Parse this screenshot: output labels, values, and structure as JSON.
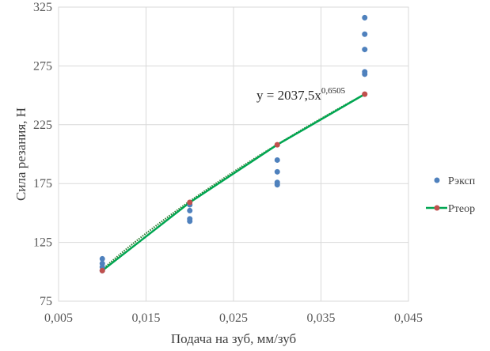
{
  "chart_data": {
    "type": "scatter",
    "title": "",
    "xlabel": "Подача на зуб, мм/зуб",
    "ylabel": "Сила резания, Н",
    "xlim": [
      0.005,
      0.045
    ],
    "ylim": [
      75,
      325
    ],
    "x_ticks": [
      "0,005",
      "0,015",
      "0,025",
      "0,035",
      "0,045"
    ],
    "y_ticks": [
      "75",
      "125",
      "175",
      "225",
      "275",
      "325"
    ],
    "grid": "vertical and horizontal",
    "legend_position": "right",
    "series": [
      {
        "name": "Рэксп",
        "kind": "scatter",
        "color": "#4F81BD",
        "points": [
          [
            0.01,
            111
          ],
          [
            0.01,
            107
          ],
          [
            0.01,
            104
          ],
          [
            0.01,
            101
          ],
          [
            0.02,
            157
          ],
          [
            0.02,
            152
          ],
          [
            0.02,
            145
          ],
          [
            0.02,
            143
          ],
          [
            0.03,
            195
          ],
          [
            0.03,
            185
          ],
          [
            0.03,
            176
          ],
          [
            0.03,
            174
          ],
          [
            0.04,
            316
          ],
          [
            0.04,
            302
          ],
          [
            0.04,
            289
          ],
          [
            0.04,
            270
          ],
          [
            0.04,
            268
          ]
        ]
      },
      {
        "name": "Ртеор",
        "kind": "line-with-markers",
        "color": "#00A651",
        "marker_color": "#C0504D",
        "points": [
          [
            0.01,
            101
          ],
          [
            0.02,
            159
          ],
          [
            0.03,
            208
          ],
          [
            0.04,
            251
          ]
        ]
      }
    ],
    "trendline": {
      "style": "dotted",
      "color": "#2E7D32",
      "equation": "y = 2037,5x",
      "exponent": "0,6505",
      "coef": 2037.5,
      "power": 0.6505
    }
  }
}
